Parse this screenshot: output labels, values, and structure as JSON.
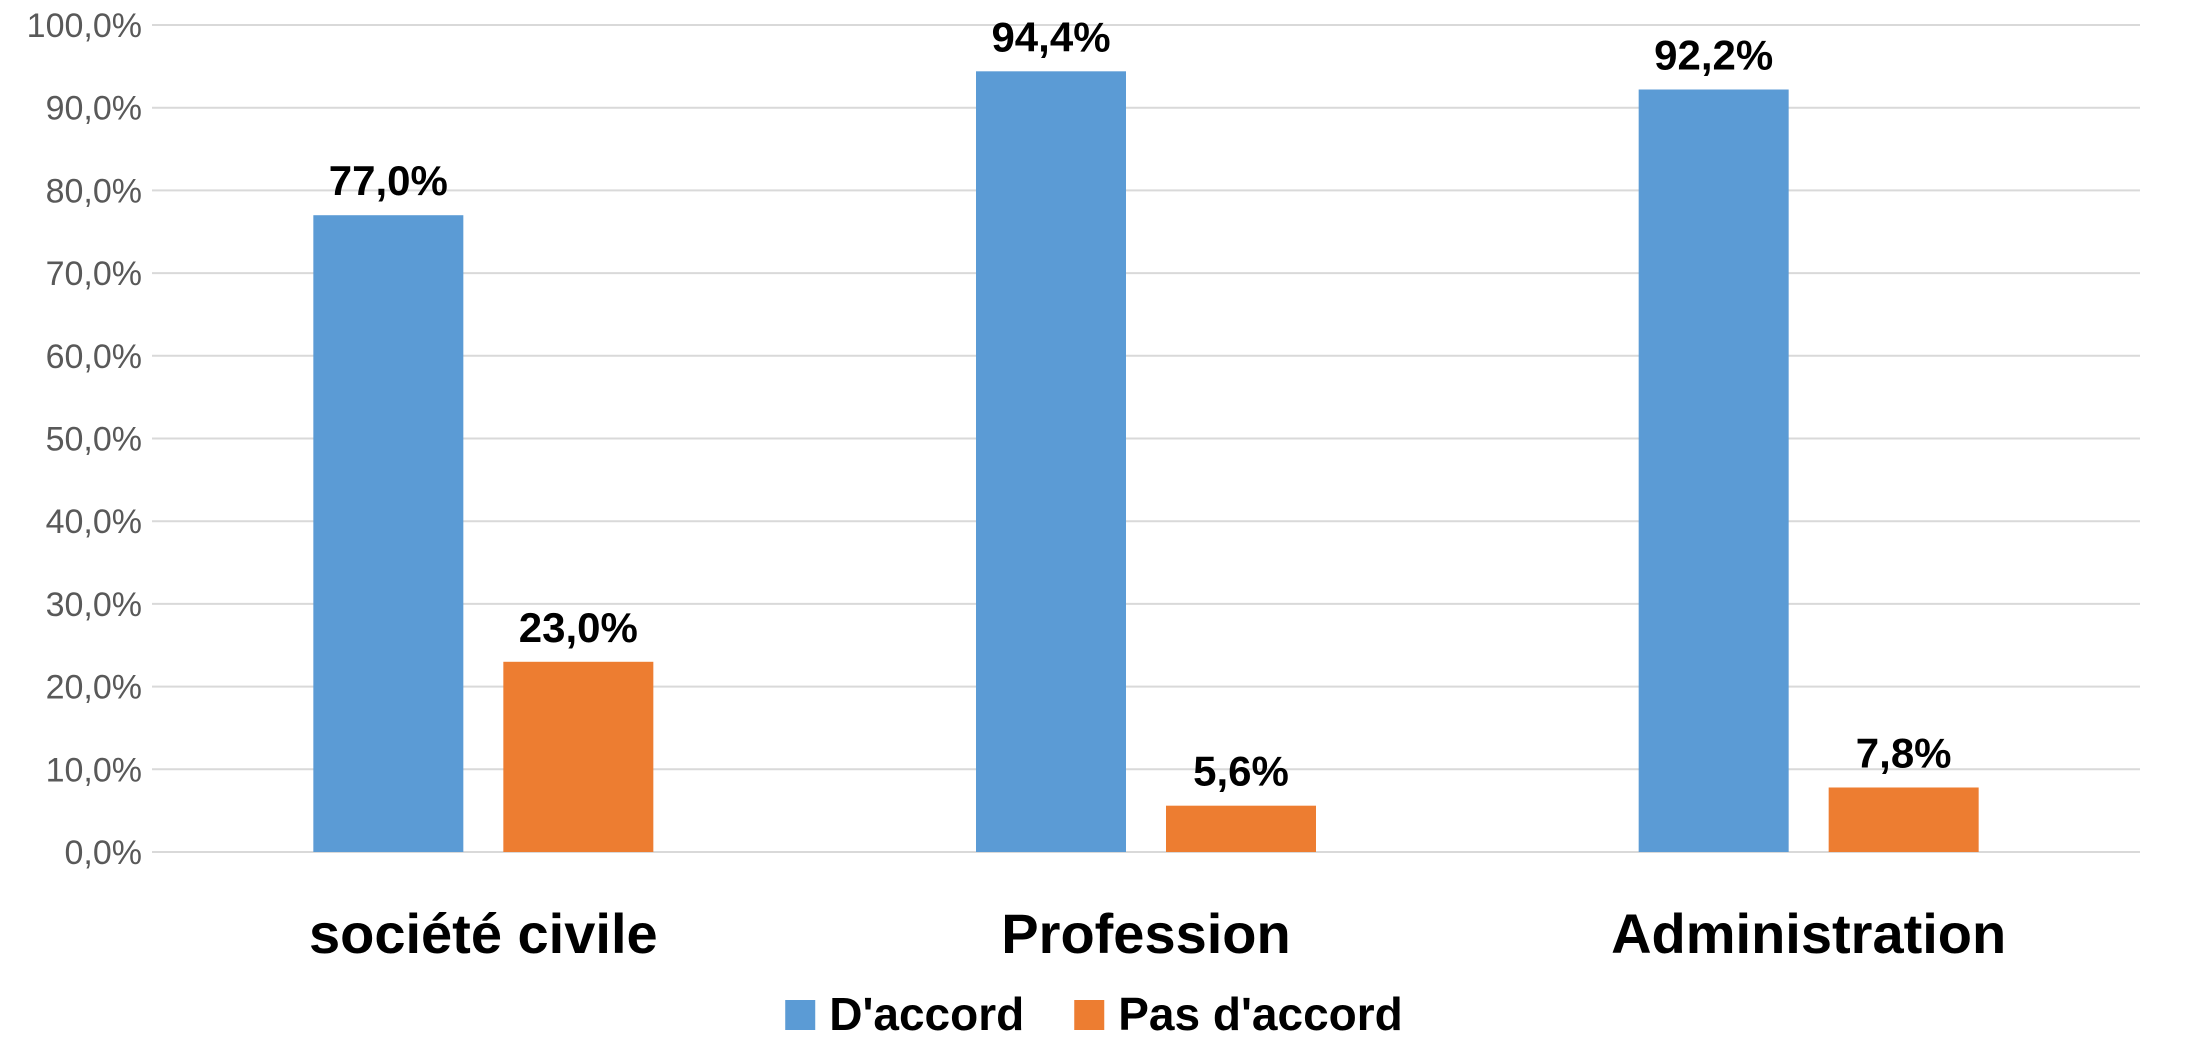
{
  "chart_data": {
    "type": "bar",
    "title": "",
    "xlabel": "",
    "ylabel": "",
    "categories": [
      "société civile",
      "Profession",
      "Administration"
    ],
    "series": [
      {
        "name": "D'accord",
        "color": "#5B9BD5",
        "values": [
          77.0,
          94.4,
          92.2
        ],
        "labels": [
          "77,0%",
          "94,4%",
          "92,2%"
        ]
      },
      {
        "name": "Pas d'accord",
        "color": "#ED7D31",
        "values": [
          23.0,
          5.6,
          7.8
        ],
        "labels": [
          "23,0%",
          "5,6%",
          "7,8%"
        ]
      }
    ],
    "ylim": [
      0,
      100
    ],
    "y_ticks": [
      0,
      10,
      20,
      30,
      40,
      50,
      60,
      70,
      80,
      90,
      100
    ],
    "y_tick_labels": [
      "0,0%",
      "10,0%",
      "20,0%",
      "30,0%",
      "40,0%",
      "50,0%",
      "60,0%",
      "70,0%",
      "80,0%",
      "90,0%",
      "100,0%"
    ],
    "grid": true,
    "gridline_color": "#D9D9D9",
    "legend_position": "bottom"
  }
}
